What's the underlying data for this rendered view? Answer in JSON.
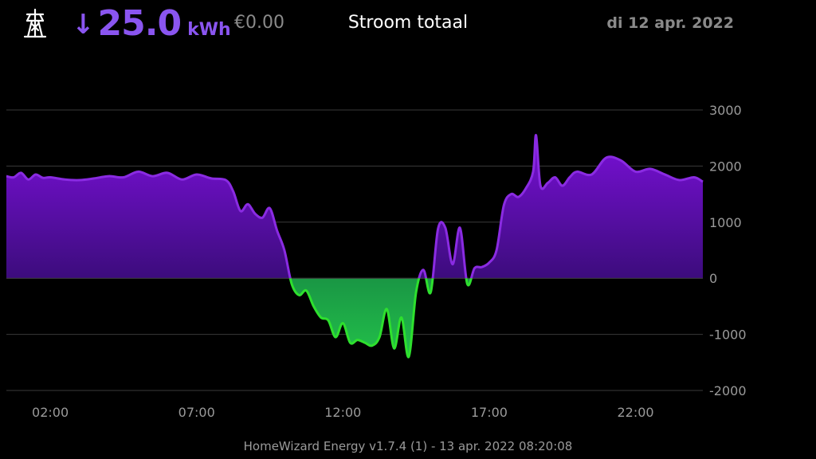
{
  "header": {
    "pylon_icon": "power-pylon-icon",
    "direction_icon": "arrow-down-icon",
    "direction_glyph": "↓",
    "energy_value": "25.0",
    "energy_unit": "kWh",
    "cost": "€0.00",
    "title": "Stroom totaal",
    "date": "di 12 apr. 2022"
  },
  "footer": {
    "version": "HomeWizard Energy v1.7.4 (1) - 13 apr. 2022 08:20:08"
  },
  "colors": {
    "accent": "#8a55f0",
    "import_line": "#8a2be2",
    "import_fill_top": "#7a10d8",
    "import_fill_bottom": "#1a0a4a",
    "export_line": "#2ee02e",
    "export_fill_top": "#0a4a3a",
    "export_fill_bottom": "#22c04a",
    "grid": "#3a3a3a",
    "axis_text": "#9a9a9a"
  },
  "chart_data": {
    "type": "area",
    "title": "",
    "xlabel": "",
    "ylabel": "",
    "x_unit": "hour of day",
    "xlim": [
      0.5,
      24.3
    ],
    "ylim": [
      -2000,
      3000
    ],
    "y_ticks": [
      3000,
      2000,
      1000,
      0,
      -1000,
      -2000
    ],
    "x_ticks": [
      {
        "pos": 2,
        "label": "02:00"
      },
      {
        "pos": 7,
        "label": "07:00"
      },
      {
        "pos": 12,
        "label": "12:00"
      },
      {
        "pos": 17,
        "label": "17:00"
      },
      {
        "pos": 22,
        "label": "22:00"
      }
    ],
    "grid": true,
    "legend": "none",
    "x": [
      0.5,
      0.75,
      1.0,
      1.25,
      1.5,
      1.75,
      2.0,
      2.5,
      3.0,
      3.5,
      4.0,
      4.5,
      5.0,
      5.5,
      6.0,
      6.5,
      7.0,
      7.5,
      8.0,
      8.25,
      8.5,
      8.75,
      9.0,
      9.25,
      9.5,
      9.75,
      10.0,
      10.25,
      10.5,
      10.75,
      11.0,
      11.25,
      11.5,
      11.75,
      12.0,
      12.25,
      12.5,
      12.75,
      13.0,
      13.25,
      13.5,
      13.75,
      14.0,
      14.25,
      14.5,
      14.75,
      15.0,
      15.25,
      15.5,
      15.75,
      16.0,
      16.25,
      16.5,
      16.75,
      17.0,
      17.25,
      17.5,
      17.75,
      18.0,
      18.25,
      18.5,
      18.6,
      18.75,
      19.0,
      19.25,
      19.5,
      19.75,
      20.0,
      20.5,
      21.0,
      21.5,
      22.0,
      22.5,
      23.0,
      23.5,
      24.0,
      24.3
    ],
    "values": [
      1820,
      1800,
      1880,
      1760,
      1850,
      1790,
      1800,
      1760,
      1750,
      1780,
      1820,
      1800,
      1900,
      1820,
      1880,
      1760,
      1850,
      1780,
      1750,
      1550,
      1200,
      1320,
      1150,
      1080,
      1250,
      850,
      500,
      -100,
      -300,
      -220,
      -500,
      -700,
      -750,
      -1050,
      -800,
      -1150,
      -1100,
      -1150,
      -1200,
      -1050,
      -550,
      -1250,
      -700,
      -1400,
      -250,
      150,
      -250,
      880,
      900,
      250,
      900,
      -100,
      180,
      200,
      280,
      500,
      1300,
      1500,
      1450,
      1600,
      1900,
      2550,
      1650,
      1700,
      1800,
      1650,
      1800,
      1900,
      1850,
      2150,
      2100,
      1900,
      1950,
      1850,
      1750,
      1800,
      1720
    ]
  }
}
